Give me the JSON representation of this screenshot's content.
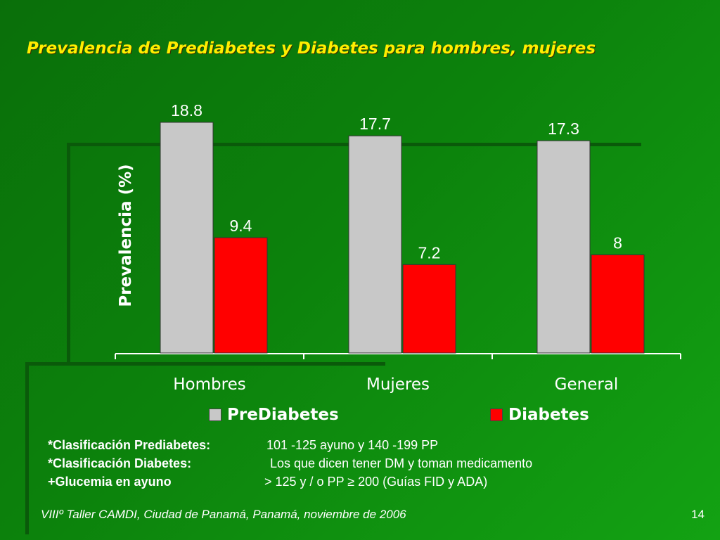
{
  "slide": {
    "title": "Prevalencia de Prediabetes y Diabetes para hombres, mujeres",
    "footer": "VIIIº Taller CAMDI, Ciudad de Panamá, Panamá, noviembre de 2006",
    "page_number": "14"
  },
  "notes": [
    {
      "key": "*Clasificación Prediabetes:",
      "value": "101 -125 ayuno y 140 -199 PP"
    },
    {
      "key": "*Clasificación Diabetes:",
      "value": "Los que dicen tener DM y toman medicamento"
    },
    {
      "key": "+Glucemia en ayuno",
      "value": "> 125 y / o PP ≥ 200 (Guías FID y ADA)"
    }
  ],
  "legend": [
    {
      "label": "PreDiabetes",
      "color": "#c8c8c8"
    },
    {
      "label": "Diabetes",
      "color": "#ff0000"
    }
  ],
  "chart_data": {
    "type": "bar",
    "categories": [
      "Hombres",
      "Mujeres",
      "General"
    ],
    "series": [
      {
        "name": "PreDiabetes",
        "values": [
          18.8,
          17.7,
          17.3
        ],
        "color": "#c8c8c8"
      },
      {
        "name": "Diabetes",
        "values": [
          9.4,
          7.2,
          8
        ],
        "color": "#ff0000"
      }
    ],
    "ylabel": "Prevalencia (%)",
    "ylim": [
      0,
      19
    ],
    "grid": false,
    "legend_position": "bottom"
  }
}
